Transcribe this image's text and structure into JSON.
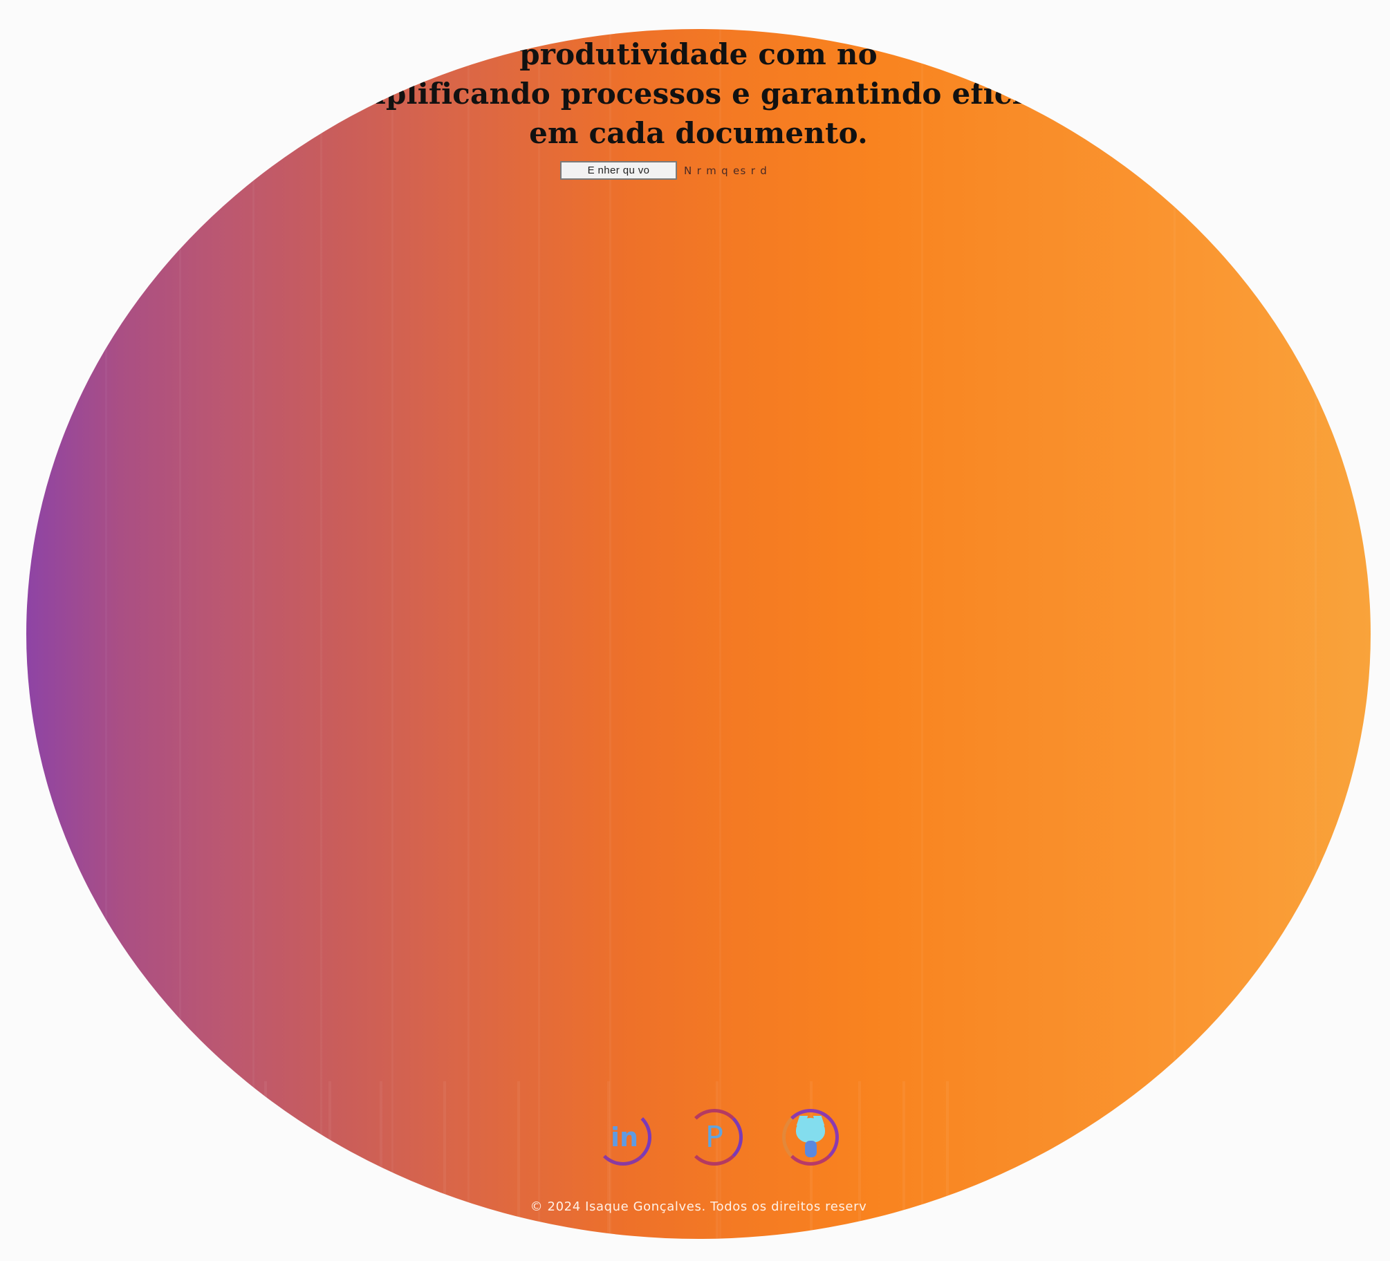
{
  "hero": {
    "headline_line1": "produtividade com no",
    "headline_line2": "mplificando processos e garantindo eficie",
    "headline_line3": "em cada documento."
  },
  "upload": {
    "button_label": "E  nher  qu  vo",
    "status_text": "N  r  m  q  es  r  d"
  },
  "social": {
    "linkedin_label": "in",
    "pinterest_label": "P",
    "github_label": "GitHub"
  },
  "footer": {
    "copyright": "© 2024 Isaque Gonçalves. Todos os direitos reserv"
  },
  "colors": {
    "gradient_start": "#8e44a5",
    "gradient_mid": "#f47a23",
    "gradient_end": "#f9a33b",
    "headline": "#111111",
    "footer_text": "#fff1e7",
    "icon_blue": "#5f9be2",
    "github_cyan": "#83ddee"
  }
}
